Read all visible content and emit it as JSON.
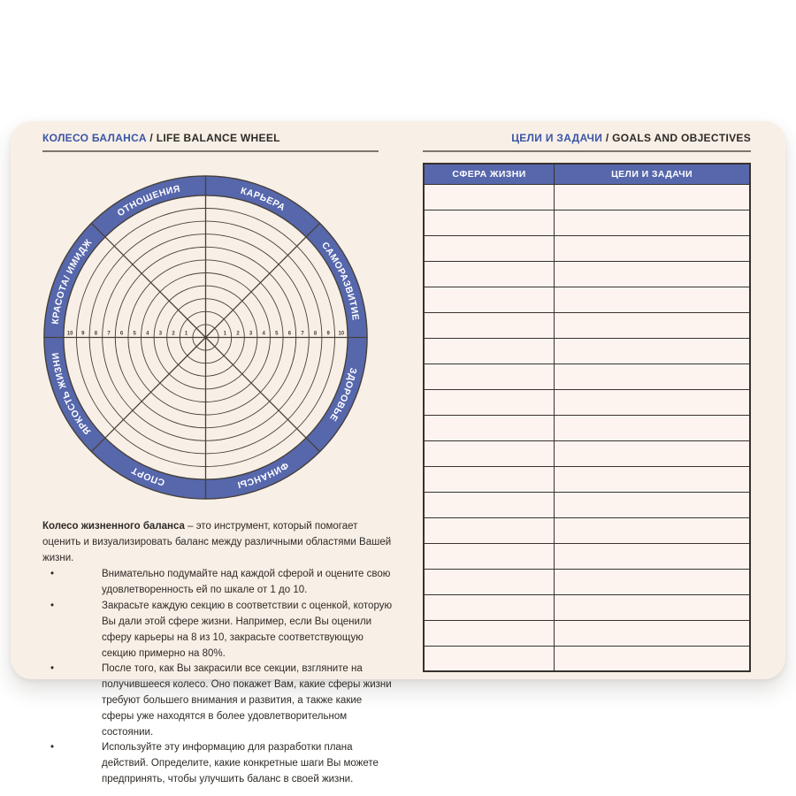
{
  "left_page": {
    "title_accent": "КОЛЕСО БАЛАНСА",
    "title_rest": " / LIFE BALANCE WHEEL",
    "wheel": {
      "sectors": [
        {
          "label": "ОТНОШЕНИЯ",
          "angle": 247.5
        },
        {
          "label": "КАРЬЕРА",
          "angle": 292.5
        },
        {
          "label": "САМОРАЗВИТИЕ",
          "angle": 337.5
        },
        {
          "label": "ЗДОРОВЬЕ",
          "angle": 22.5
        },
        {
          "label": "ФИНАНСЫ",
          "angle": 67.5
        },
        {
          "label": "СПОРТ",
          "angle": 112.5
        },
        {
          "label": "ЯРКОСТЬ ЖИЗНИ",
          "angle": 157.5
        },
        {
          "label": "КРАСОТА/ ИМИДЖ",
          "angle": 202.5
        }
      ],
      "scale_numbers": [
        1,
        2,
        3,
        4,
        5,
        6,
        7,
        8,
        9,
        10
      ],
      "ring_count": 10
    },
    "intro_bold": "Колесо жизненного баланса",
    "intro_text": " – это инструмент, который помогает оценить и визуализировать баланс между различными областями Вашей жизни.",
    "bullets": [
      "Внимательно подумайте над каждой сферой и оцените свою удовлетворенность ей по шкале от 1 до 10.",
      "Закрасьте каждую секцию в соответствии с оценкой, которую Вы дали этой сфере жизни. Например, если Вы оценили сферу карьеры на 8 из 10, закрасьте соответствующую секцию примерно на 80%.",
      "После того, как Вы закрасили все секции, взгляните на получившееся колесо. Оно покажет Вам, какие сферы жизни требуют большего внимания и развития, а также какие сферы уже находятся в более удовлетворительном состоянии.",
      "Используйте эту информацию для разработки плана действий. Определите, какие конкретные шаги Вы можете предпринять, чтобы улучшить баланс в своей жизни."
    ]
  },
  "right_page": {
    "title_accent": "ЦЕЛИ И ЗАДАЧИ",
    "title_rest": " / GOALS AND OBJECTIVES",
    "table": {
      "columns": [
        "СФЕРА ЖИЗНИ",
        "ЦЕЛИ И ЗАДАЧИ"
      ],
      "empty_row_count": 19
    }
  },
  "colors": {
    "accent_blue": "#5767ac",
    "title_blue": "#3a55a6",
    "card_bg": "#f8f0e7",
    "cell_bg": "#fdf4ef",
    "wheel_line": "#46403a",
    "table_line": "#38322d",
    "text_dark": "#2e2a26"
  }
}
